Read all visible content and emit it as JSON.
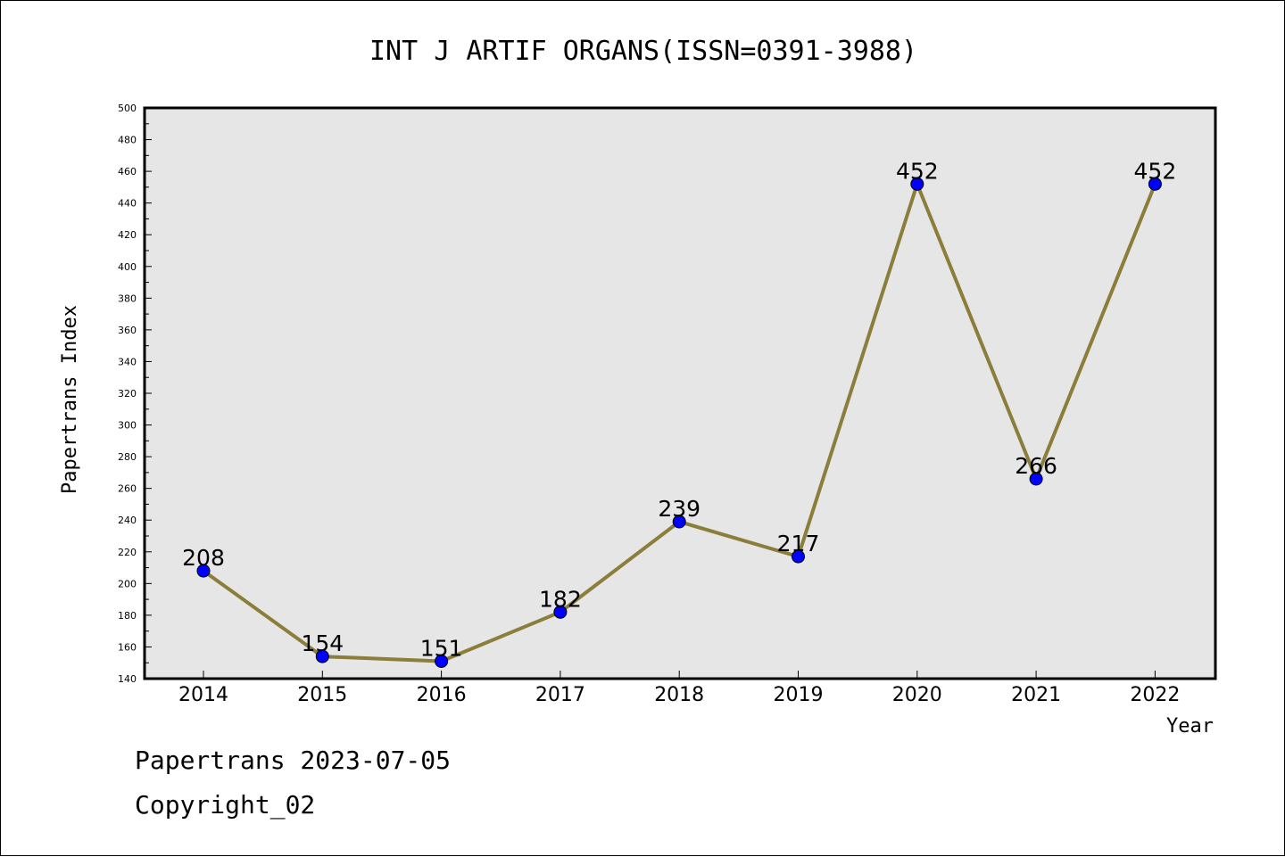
{
  "chart_data": {
    "type": "line",
    "title": "INT J ARTIF ORGANS(ISSN=0391-3988)",
    "xlabel": "Year",
    "ylabel": "Papertrans Index",
    "categories": [
      "2014",
      "2015",
      "2016",
      "2017",
      "2018",
      "2019",
      "2020",
      "2021",
      "2022"
    ],
    "series": [
      {
        "values": [
          208,
          154,
          151,
          182,
          239,
          217,
          452,
          266,
          452
        ]
      }
    ],
    "ylim": [
      140,
      500
    ],
    "yticks": [
      140,
      160,
      180,
      200,
      220,
      240,
      260,
      280,
      300,
      320,
      340,
      360,
      380,
      400,
      420,
      440,
      460,
      480,
      500
    ],
    "grid": false,
    "legend": "none",
    "colors": {
      "line": "#8b7d3a",
      "marker": "#0000ff",
      "plot_background": "#e6e6e6",
      "frame": "#000000"
    }
  },
  "footer": {
    "line1": "Papertrans 2023-07-05",
    "line2": "Copyright_02"
  }
}
